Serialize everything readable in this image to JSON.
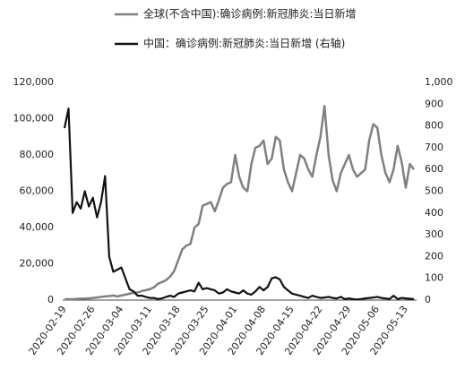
{
  "chart_data": {
    "type": "line",
    "categories": [
      "2020-02-19",
      null,
      null,
      null,
      null,
      null,
      null,
      "2020-02-26",
      null,
      null,
      null,
      null,
      null,
      null,
      "2020-03-04",
      null,
      null,
      null,
      null,
      null,
      null,
      "2020-03-11",
      null,
      null,
      null,
      null,
      null,
      null,
      "2020-03-18",
      null,
      null,
      null,
      null,
      null,
      null,
      "2020-03-25",
      null,
      null,
      null,
      null,
      null,
      null,
      "2020-04-01",
      null,
      null,
      null,
      null,
      null,
      null,
      "2020-04-08",
      null,
      null,
      null,
      null,
      null,
      null,
      "2020-04-15",
      null,
      null,
      null,
      null,
      null,
      null,
      "2020-04-22",
      null,
      null,
      null,
      null,
      null,
      null,
      "2020-04-29",
      null,
      null,
      null,
      null,
      null,
      null,
      "2020-05-06",
      null,
      null,
      null,
      null,
      null,
      null,
      "2020-05-13",
      null,
      null
    ],
    "series": [
      {
        "name": "全球(不含中国):确诊病例:新冠肺炎:当日新增",
        "color": "#808080",
        "axis": "y",
        "values": [
          500,
          500,
          500,
          700,
          800,
          900,
          1000,
          1200,
          1500,
          1800,
          2000,
          2200,
          2500,
          2000,
          2500,
          3000,
          3500,
          4000,
          4200,
          5000,
          5500,
          6000,
          7000,
          9000,
          10000,
          11000,
          13000,
          16000,
          22000,
          28000,
          30000,
          31000,
          40000,
          42000,
          52000,
          53000,
          54000,
          49000,
          55000,
          62000,
          64000,
          65000,
          80000,
          68000,
          62000,
          60000,
          75000,
          84000,
          85000,
          88000,
          75000,
          78000,
          90000,
          88000,
          72000,
          65000,
          60000,
          70000,
          80000,
          78000,
          72000,
          68000,
          80000,
          90000,
          107000,
          80000,
          66000,
          60000,
          70000,
          75000,
          80000,
          72000,
          68000,
          70000,
          72000,
          88000,
          97000,
          95000,
          80000,
          70000,
          65000,
          72000,
          85000,
          76000,
          62000,
          75000,
          72000
        ]
      },
      {
        "name": "中国：确诊病例:新冠肺炎:当日新增 (右轴)",
        "color": "#111111",
        "axis": "y2",
        "values": [
          790,
          880,
          400,
          450,
          420,
          500,
          430,
          470,
          380,
          450,
          570,
          200,
          130,
          140,
          150,
          100,
          50,
          40,
          20,
          20,
          15,
          10,
          10,
          5,
          8,
          15,
          20,
          15,
          30,
          35,
          40,
          45,
          40,
          80,
          50,
          55,
          50,
          45,
          30,
          35,
          50,
          40,
          35,
          30,
          45,
          30,
          25,
          40,
          60,
          45,
          60,
          100,
          105,
          95,
          60,
          45,
          30,
          25,
          20,
          15,
          10,
          20,
          15,
          10,
          12,
          15,
          10,
          8,
          15,
          5,
          8,
          5,
          3,
          5,
          8,
          10,
          12,
          15,
          10,
          8,
          5,
          20,
          5,
          10,
          8,
          6,
          5
        ]
      }
    ],
    "ylim": [
      0,
      120000
    ],
    "yticks": [
      0,
      {
        "value": 20000,
        "label": "20,000"
      },
      {
        "value": 40000,
        "label": "40,000"
      },
      {
        "value": 60000,
        "label": "60,000"
      },
      {
        "value": 80000,
        "label": "80,000"
      },
      {
        "value": 100000,
        "label": "100,000"
      },
      {
        "value": 120000,
        "label": "120,000"
      }
    ],
    "y2lim": [
      0,
      1000
    ],
    "y2ticks": [
      0,
      100,
      200,
      300,
      400,
      500,
      600,
      700,
      800,
      900,
      {
        "value": 1000,
        "label": "1,000"
      }
    ],
    "legend": "top"
  }
}
